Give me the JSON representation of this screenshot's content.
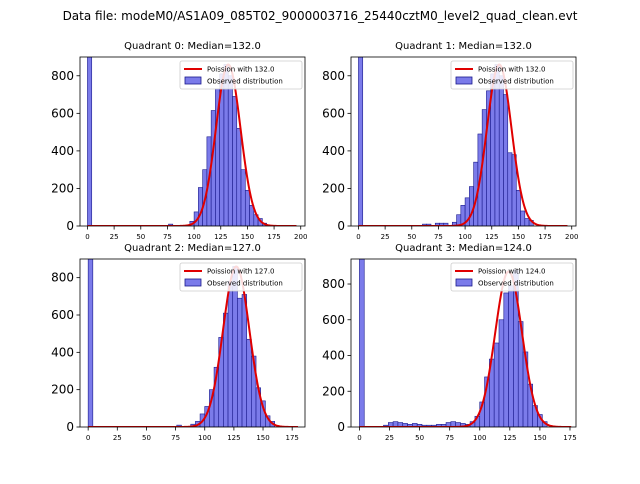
{
  "suptitle": "Data file: modeM0/AS1A09_085T02_9000003716_25440cztM0_level2_quad_clean.evt",
  "colors": {
    "bar_fill": "#7b7bea",
    "bar_edge": "#1a1a8c",
    "fit_line": "#e00000",
    "background": "#ffffff"
  },
  "chart_data": [
    {
      "type": "bar",
      "title": "Quadrant 0: Median=132.0",
      "xlim": [
        -7,
        204
      ],
      "ylim": [
        0,
        900
      ],
      "xticks": [
        0,
        25,
        50,
        75,
        100,
        125,
        150,
        175,
        200
      ],
      "yticks": [
        0,
        200,
        400,
        600,
        800
      ],
      "grid": false,
      "legend_position": "top-right",
      "bin_width": 4,
      "series": [
        {
          "name": "Observed distribution",
          "bin_starts": [
            0,
            76,
            96,
            100,
            104,
            108,
            112,
            116,
            120,
            124,
            128,
            132,
            136,
            140,
            144,
            148,
            152,
            156,
            160,
            164
          ],
          "values": [
            900,
            10,
            25,
            75,
            205,
            300,
            475,
            615,
            730,
            810,
            860,
            800,
            690,
            520,
            300,
            190,
            110,
            60,
            40,
            15
          ]
        },
        {
          "name": "Poission with 132.0",
          "mean": 132.0,
          "peak": 860,
          "x_range": [
            0,
            196
          ]
        }
      ]
    },
    {
      "type": "bar",
      "title": "Quadrant 1: Median=132.0",
      "xlim": [
        -7,
        204
      ],
      "ylim": [
        0,
        900
      ],
      "xticks": [
        0,
        25,
        50,
        75,
        100,
        125,
        150,
        175,
        200
      ],
      "yticks": [
        0,
        200,
        400,
        600,
        800
      ],
      "grid": false,
      "legend_position": "top-right",
      "bin_width": 4,
      "series": [
        {
          "name": "Observed distribution",
          "bin_starts": [
            0,
            60,
            64,
            72,
            76,
            80,
            88,
            92,
            96,
            100,
            104,
            108,
            112,
            116,
            120,
            124,
            128,
            132,
            136,
            140,
            144,
            148,
            152,
            156,
            160
          ],
          "values": [
            900,
            10,
            10,
            15,
            15,
            15,
            20,
            60,
            110,
            150,
            210,
            340,
            490,
            620,
            720,
            810,
            860,
            800,
            700,
            390,
            380,
            190,
            80,
            40,
            30
          ]
        },
        {
          "name": "Poission with 132.0",
          "mean": 132.0,
          "peak": 860,
          "x_range": [
            0,
            196
          ]
        }
      ]
    },
    {
      "type": "bar",
      "title": "Quadrant 2: Median=127.0",
      "xlim": [
        -7,
        186
      ],
      "ylim": [
        0,
        900
      ],
      "xticks": [
        0,
        25,
        50,
        75,
        100,
        125,
        150,
        175
      ],
      "yticks": [
        0,
        200,
        400,
        600,
        800
      ],
      "grid": false,
      "legend_position": "top-right",
      "bin_width": 4,
      "series": [
        {
          "name": "Observed distribution",
          "bin_starts": [
            0,
            76,
            88,
            92,
            96,
            100,
            104,
            108,
            112,
            116,
            120,
            124,
            128,
            132,
            136,
            140,
            144,
            148,
            152,
            156
          ],
          "values": [
            900,
            10,
            15,
            30,
            70,
            110,
            200,
            320,
            480,
            610,
            780,
            860,
            690,
            710,
            470,
            380,
            210,
            140,
            60,
            30
          ]
        },
        {
          "name": "Poission with 127.0",
          "mean": 127.0,
          "peak": 860,
          "x_range": [
            0,
            180
          ]
        }
      ]
    },
    {
      "type": "bar",
      "title": "Quadrant 3: Median=124.0",
      "xlim": [
        -7,
        180
      ],
      "ylim": [
        0,
        940
      ],
      "xticks": [
        0,
        25,
        50,
        75,
        100,
        125,
        150,
        175
      ],
      "yticks": [
        0,
        200,
        400,
        600,
        800
      ],
      "grid": false,
      "legend_position": "top-right",
      "bin_width": 4,
      "series": [
        {
          "name": "Observed distribution",
          "bin_starts": [
            0,
            20,
            24,
            28,
            32,
            36,
            40,
            44,
            48,
            52,
            56,
            60,
            64,
            68,
            72,
            76,
            80,
            84,
            88,
            92,
            96,
            100,
            104,
            108,
            112,
            116,
            120,
            124,
            128,
            132,
            136,
            140,
            144,
            148,
            152
          ],
          "values": [
            940,
            10,
            25,
            30,
            25,
            20,
            15,
            20,
            15,
            10,
            10,
            10,
            15,
            15,
            25,
            30,
            25,
            20,
            15,
            30,
            60,
            140,
            280,
            380,
            470,
            600,
            750,
            790,
            880,
            590,
            420,
            240,
            120,
            70,
            30
          ]
        },
        {
          "name": "Poission with 124.0",
          "mean": 124.0,
          "peak": 870,
          "x_range": [
            0,
            176
          ]
        }
      ]
    }
  ]
}
